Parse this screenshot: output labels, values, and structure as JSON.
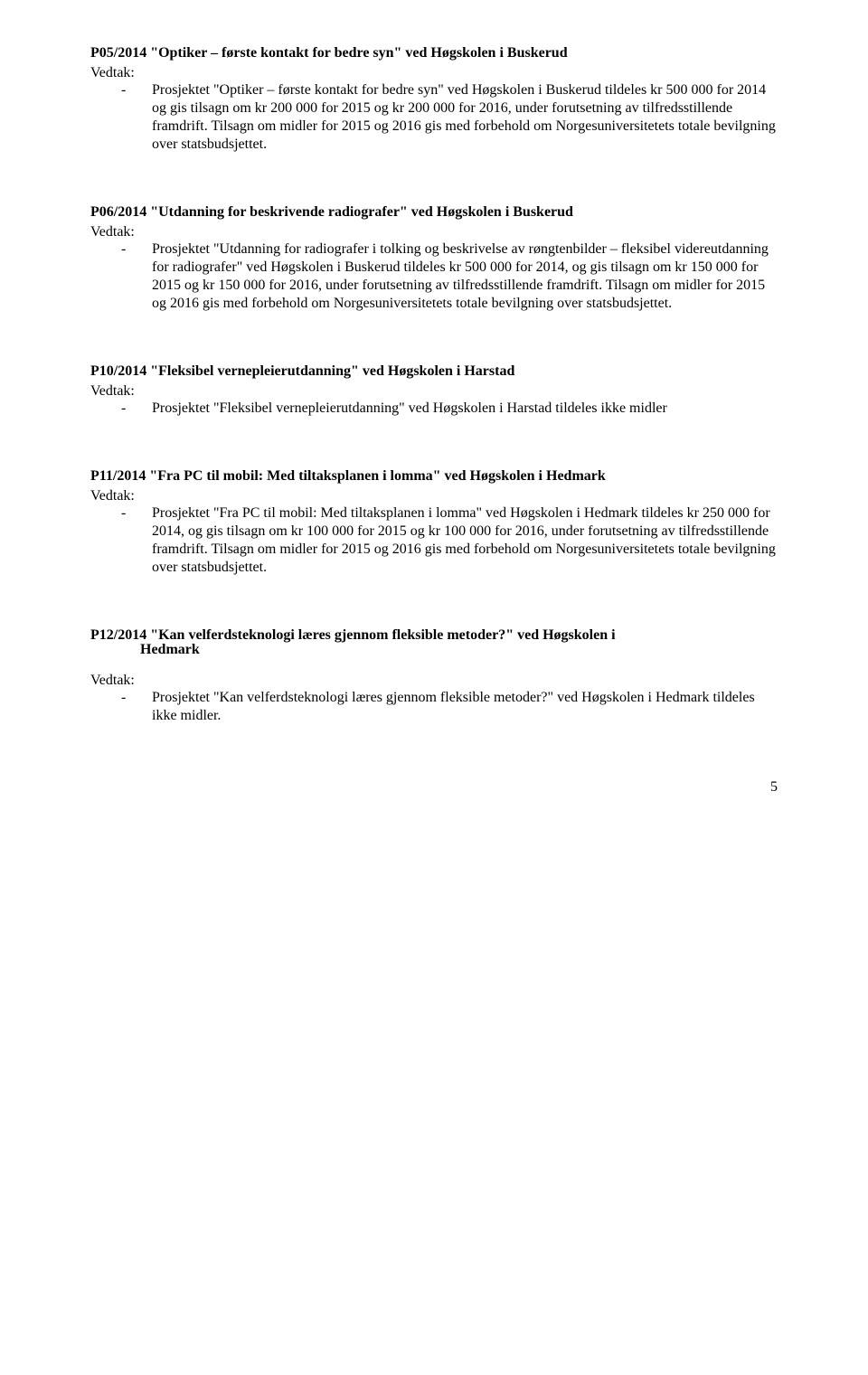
{
  "sections": [
    {
      "heading": "P05/2014 \"Optiker – første kontakt for bedre syn\" ved Høgskolen i Buskerud",
      "vedtak_label": "Vedtak:",
      "bullet_dash": "-",
      "bullet_text": "Prosjektet \"Optiker – første kontakt for bedre syn\" ved Høgskolen i Buskerud tildeles kr 500 000 for 2014 og gis tilsagn om kr 200 000 for 2015 og kr 200 000 for 2016, under forutsetning av tilfredsstillende framdrift. Tilsagn om midler for 2015 og 2016 gis med forbehold om Norgesuniversitetets totale bevilgning over statsbudsjettet."
    },
    {
      "heading": "P06/2014 \"Utdanning for beskrivende radiografer\" ved Høgskolen i Buskerud",
      "vedtak_label": "Vedtak:",
      "bullet_dash": "-",
      "bullet_text": "Prosjektet \"Utdanning for radiografer i tolking og beskrivelse av røngtenbilder – fleksibel videreutdanning for radiografer\" ved Høgskolen i Buskerud tildeles kr 500 000 for 2014, og gis tilsagn om kr 150 000 for 2015 og kr 150 000 for 2016, under forutsetning av tilfredsstillende framdrift. Tilsagn om midler for 2015 og 2016 gis med forbehold om Norgesuniversitetets totale bevilgning over statsbudsjettet."
    },
    {
      "heading": "P10/2014 \"Fleksibel vernepleierutdanning\" ved Høgskolen i Harstad",
      "vedtak_label": "Vedtak:",
      "bullet_dash": "-",
      "bullet_text": "Prosjektet \"Fleksibel vernepleierutdanning\" ved Høgskolen i Harstad tildeles ikke midler"
    },
    {
      "heading": "P11/2014 \"Fra PC til mobil: Med tiltaksplanen i lomma\" ved Høgskolen i Hedmark",
      "vedtak_label": "Vedtak:",
      "bullet_dash": "-",
      "bullet_text": "Prosjektet \"Fra PC til mobil: Med tiltaksplanen i lomma\" ved Høgskolen i Hedmark tildeles kr 250 000 for 2014, og gis tilsagn om kr 100 000 for 2015 og kr 100 000 for 2016, under forutsetning av tilfredsstillende framdrift. Tilsagn om midler for 2015 og 2016 gis med forbehold om Norgesuniversitetets totale bevilgning over statsbudsjettet."
    },
    {
      "heading": "P12/2014 \"Kan velferdsteknologi læres gjennom fleksible metoder?\" ved Høgskolen i",
      "heading_cont": "Hedmark",
      "vedtak_label": "Vedtak:",
      "bullet_dash": "-",
      "bullet_text": "Prosjektet \"Kan velferdsteknologi læres gjennom fleksible metoder?\" ved Høgskolen i Hedmark tildeles ikke midler."
    }
  ],
  "page_number": "5"
}
